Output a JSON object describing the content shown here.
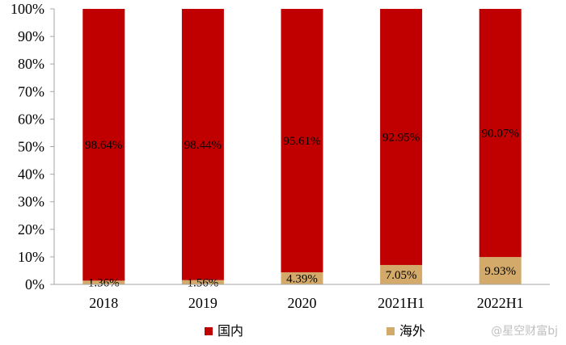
{
  "chart_data": {
    "type": "bar",
    "stacked": true,
    "categories": [
      "2018",
      "2019",
      "2020",
      "2021H1",
      "2022H1"
    ],
    "series": [
      {
        "name": "国内",
        "values": [
          98.64,
          98.44,
          95.61,
          92.95,
          90.07
        ],
        "labels": [
          "98.64%",
          "98.44%",
          "95.61%",
          "92.95%",
          "90.07%"
        ],
        "color": "#c00000"
      },
      {
        "name": "海外",
        "values": [
          1.36,
          1.56,
          4.39,
          7.05,
          9.93
        ],
        "labels": [
          "1.36%",
          "1.56%",
          "4.39%",
          "7.05%",
          "9.93%"
        ],
        "color": "#d4aa6a"
      }
    ],
    "ylim": [
      0,
      100
    ],
    "yticks": [
      "0%",
      "10%",
      "20%",
      "30%",
      "40%",
      "50%",
      "60%",
      "70%",
      "80%",
      "90%",
      "100%"
    ],
    "grid": false,
    "legend": "bottom"
  },
  "watermark": "@星空财富bj"
}
